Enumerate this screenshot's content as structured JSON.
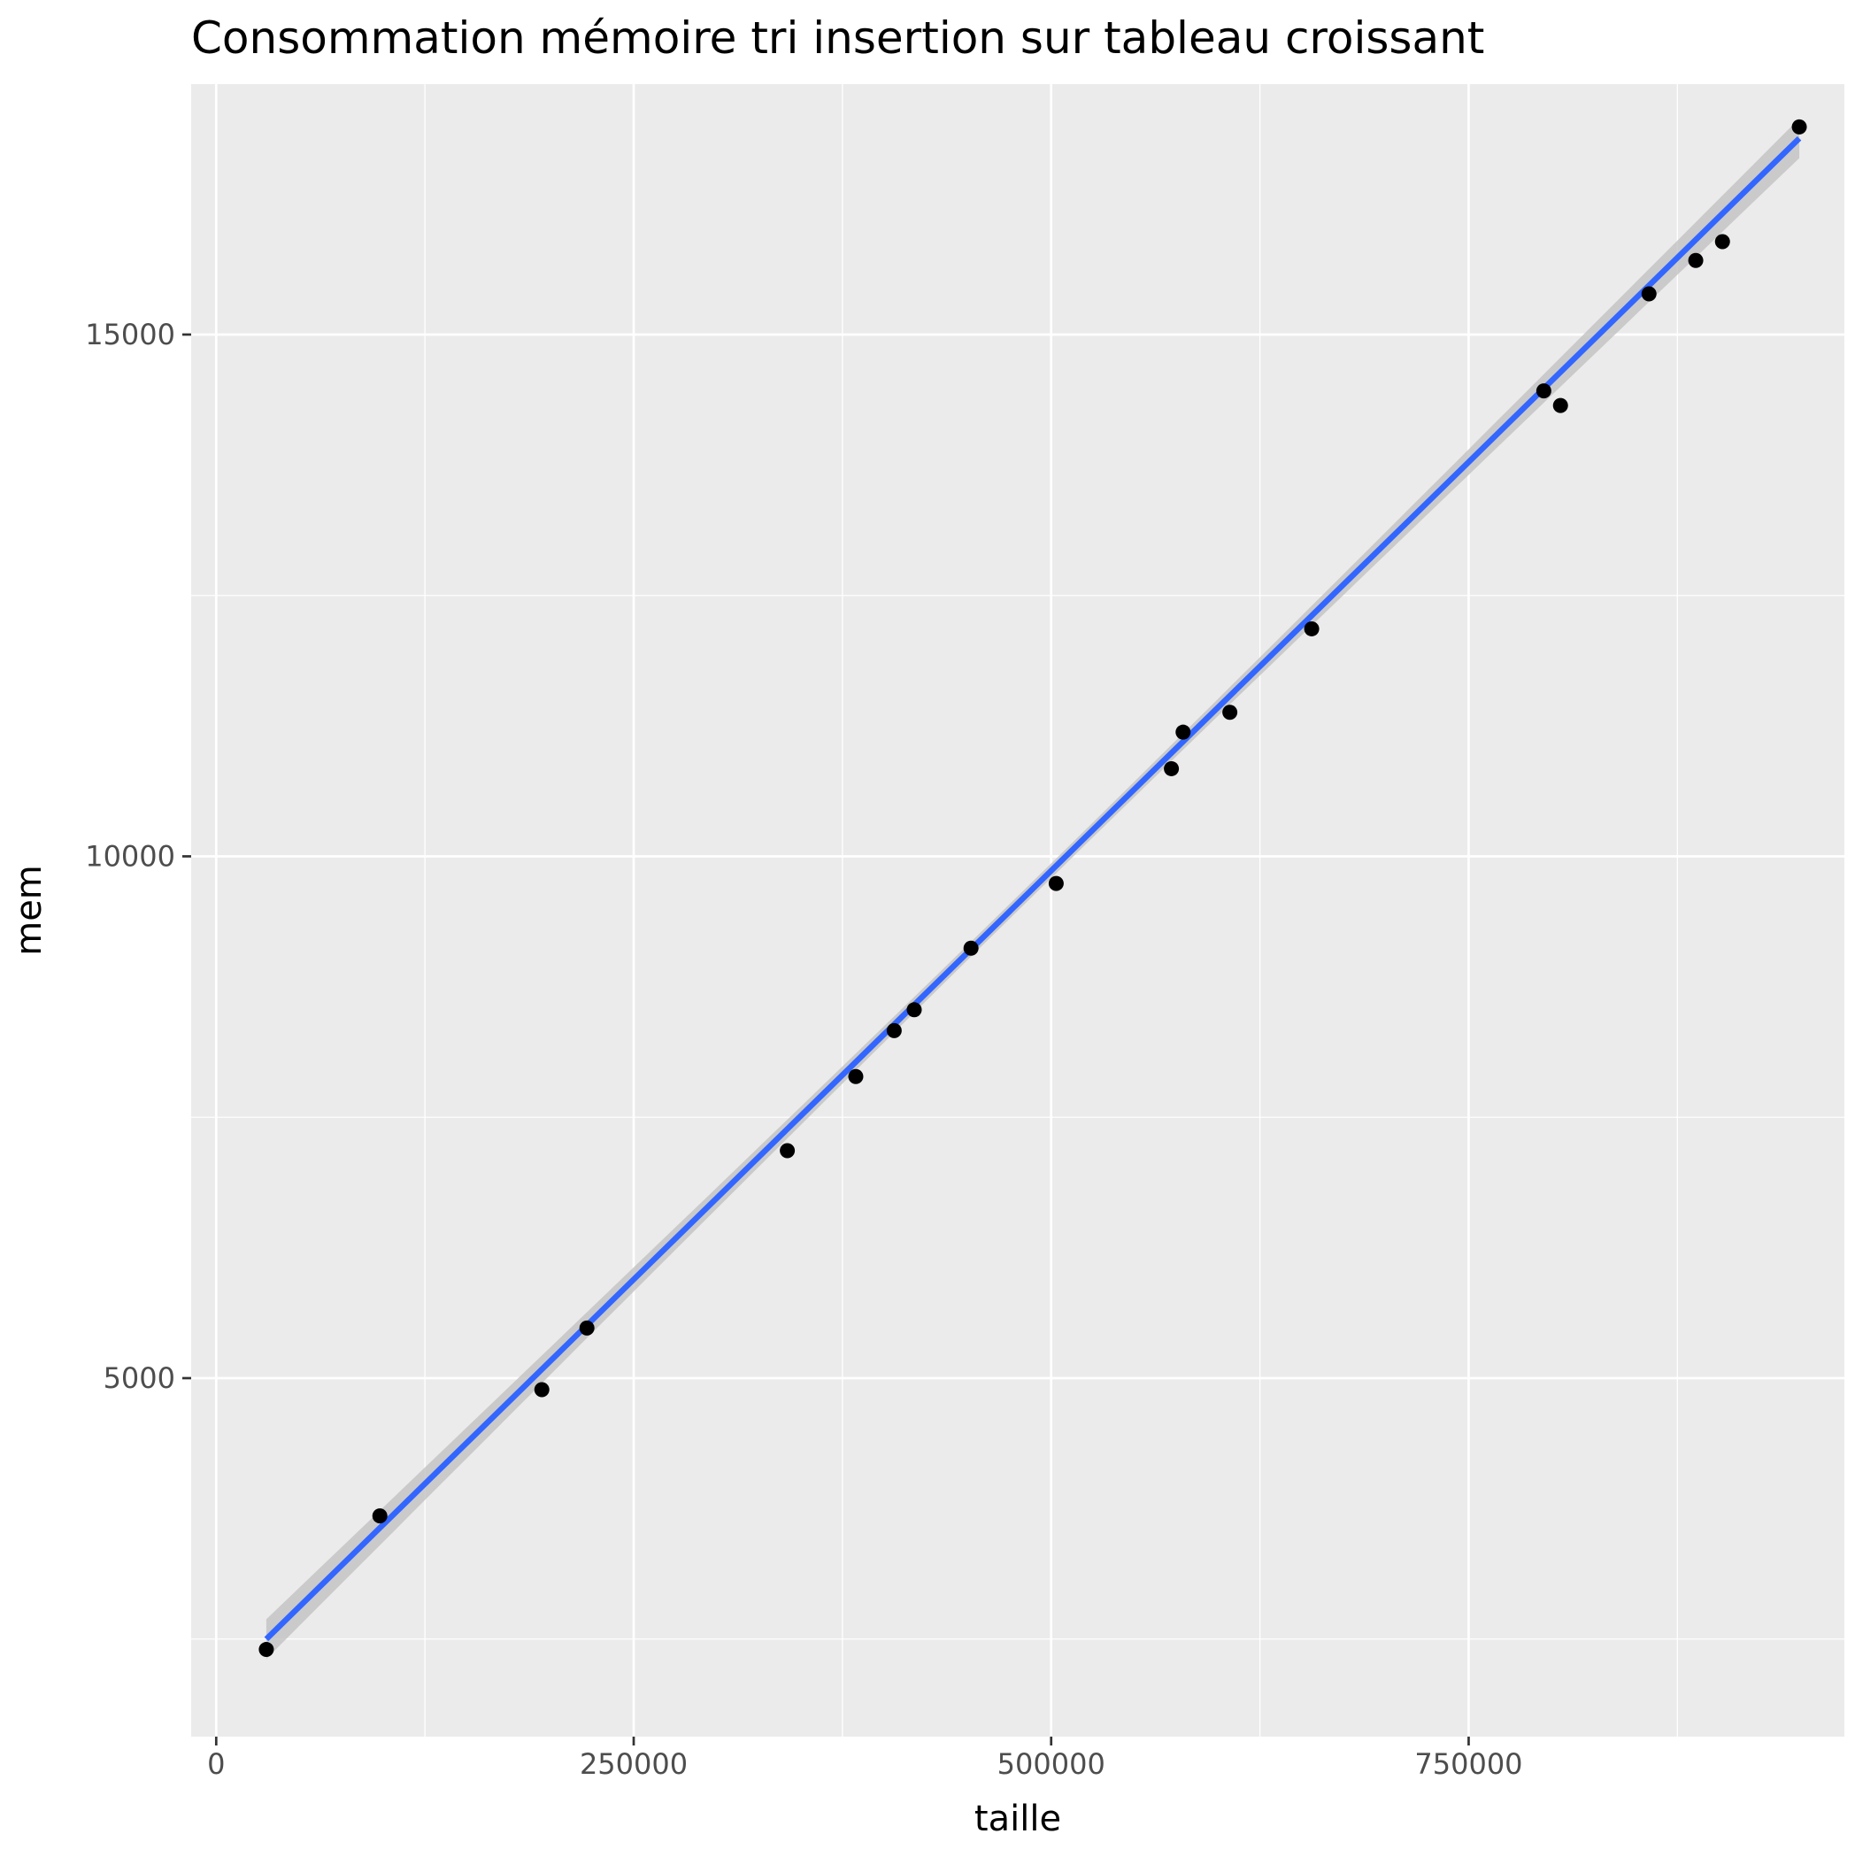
{
  "chart_data": {
    "type": "scatter",
    "title": "Consommation mémoire tri insertion sur tableau croissant",
    "xlabel": "taille",
    "ylabel": "mem",
    "xlim": [
      -15000,
      975000
    ],
    "ylim": [
      1565,
      17400
    ],
    "x_ticks": [
      0,
      250000,
      500000,
      750000
    ],
    "x_tick_labels": [
      "0",
      "250000",
      "500000",
      "750000"
    ],
    "x_minor_ticks": [
      125000,
      375000,
      625000,
      875000
    ],
    "y_ticks": [
      5000,
      10000,
      15000
    ],
    "y_tick_labels": [
      "5000",
      "10000",
      "15000"
    ],
    "y_minor_ticks": [
      2500,
      7500,
      12500
    ],
    "grid": true,
    "points": [
      {
        "x": 30000,
        "y": 2400
      },
      {
        "x": 98000,
        "y": 3680
      },
      {
        "x": 195000,
        "y": 4890
      },
      {
        "x": 222000,
        "y": 5480
      },
      {
        "x": 342000,
        "y": 7180
      },
      {
        "x": 383000,
        "y": 7890
      },
      {
        "x": 406000,
        "y": 8330
      },
      {
        "x": 418000,
        "y": 8530
      },
      {
        "x": 452000,
        "y": 9120
      },
      {
        "x": 503000,
        "y": 9740
      },
      {
        "x": 572000,
        "y": 10840
      },
      {
        "x": 579000,
        "y": 11190
      },
      {
        "x": 607000,
        "y": 11380
      },
      {
        "x": 656000,
        "y": 12180
      },
      {
        "x": 795000,
        "y": 14460
      },
      {
        "x": 805000,
        "y": 14320
      },
      {
        "x": 858000,
        "y": 15390
      },
      {
        "x": 886000,
        "y": 15710
      },
      {
        "x": 902000,
        "y": 15890
      },
      {
        "x": 948000,
        "y": 16990
      }
    ],
    "fit": {
      "method": "linear",
      "x_range": [
        30000,
        948000
      ],
      "y_range": [
        2500,
        16880
      ],
      "band_halfwidth_ends": 190,
      "band_halfwidth_mid": 70
    },
    "colors": {
      "panel": "#ebebeb",
      "grid_major": "#ffffff",
      "points": "#000000",
      "fit_line": "#3366ff",
      "band": "#c2c2c2"
    }
  }
}
